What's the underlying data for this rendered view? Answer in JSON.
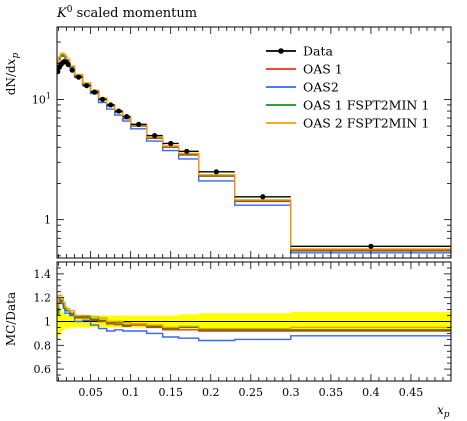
{
  "chart_data": [
    {
      "type": "line",
      "title": "K0 scaled momentum",
      "title_main": "K",
      "title_sup": "0",
      "title_rest": " scaled momentum",
      "ylabel": "dN/dx_p",
      "ylabel_parts": {
        "a": "dN/d",
        "b": "x",
        "c": "p"
      },
      "yscale": "log",
      "ylim": [
        0.48,
        40
      ],
      "y_ticks": [
        {
          "value": 1,
          "label": "1"
        },
        {
          "value": 10,
          "label": "10",
          "base": "10",
          "exp": "1"
        }
      ],
      "x_edges": [
        0.008,
        0.01,
        0.012,
        0.014,
        0.016,
        0.018,
        0.02,
        0.024,
        0.03,
        0.04,
        0.05,
        0.06,
        0.07,
        0.08,
        0.09,
        0.1,
        0.12,
        0.14,
        0.16,
        0.185,
        0.23,
        0.3,
        0.5
      ],
      "data_points": [
        {
          "x": 0.009,
          "y": 17.0,
          "xlo": 0.008,
          "xhi": 0.01
        },
        {
          "x": 0.011,
          "y": 18.5,
          "xlo": 0.01,
          "xhi": 0.012
        },
        {
          "x": 0.013,
          "y": 19.5,
          "xlo": 0.012,
          "xhi": 0.014
        },
        {
          "x": 0.015,
          "y": 20.2,
          "xlo": 0.014,
          "xhi": 0.016
        },
        {
          "x": 0.017,
          "y": 20.6,
          "xlo": 0.016,
          "xhi": 0.018
        },
        {
          "x": 0.019,
          "y": 20.5,
          "xlo": 0.018,
          "xhi": 0.02
        },
        {
          "x": 0.022,
          "y": 19.5,
          "xlo": 0.02,
          "xhi": 0.024
        },
        {
          "x": 0.027,
          "y": 17.5,
          "xlo": 0.024,
          "xhi": 0.03
        },
        {
          "x": 0.035,
          "y": 15.3,
          "xlo": 0.03,
          "xhi": 0.04
        },
        {
          "x": 0.045,
          "y": 13.0,
          "xlo": 0.04,
          "xhi": 0.05
        },
        {
          "x": 0.055,
          "y": 11.5,
          "xlo": 0.05,
          "xhi": 0.06
        },
        {
          "x": 0.065,
          "y": 10.0,
          "xlo": 0.06,
          "xhi": 0.07
        },
        {
          "x": 0.075,
          "y": 9.0,
          "xlo": 0.07,
          "xhi": 0.08
        },
        {
          "x": 0.085,
          "y": 8.0,
          "xlo": 0.08,
          "xhi": 0.09
        },
        {
          "x": 0.095,
          "y": 7.2,
          "xlo": 0.09,
          "xhi": 0.1
        },
        {
          "x": 0.11,
          "y": 6.2,
          "xlo": 0.1,
          "xhi": 0.12
        },
        {
          "x": 0.13,
          "y": 5.0,
          "xlo": 0.12,
          "xhi": 0.14
        },
        {
          "x": 0.15,
          "y": 4.3,
          "xlo": 0.14,
          "xhi": 0.16
        },
        {
          "x": 0.17,
          "y": 3.7,
          "xlo": 0.16,
          "xhi": 0.185
        },
        {
          "x": 0.207,
          "y": 2.5,
          "xlo": 0.185,
          "xhi": 0.23
        },
        {
          "x": 0.265,
          "y": 1.55,
          "xlo": 0.23,
          "xhi": 0.3
        },
        {
          "x": 0.4,
          "y": 0.6,
          "xlo": 0.3,
          "xhi": 0.5
        }
      ],
      "series": [
        {
          "name": "Data",
          "color": "#000000"
        },
        {
          "name": "OAS 1",
          "color": "#ee3311",
          "values": [
            18.0,
            21.5,
            22.8,
            23.5,
            23.2,
            22.5,
            21.2,
            18.6,
            15.8,
            13.4,
            11.6,
            10.0,
            8.8,
            7.8,
            6.9,
            6.0,
            4.75,
            4.0,
            3.45,
            2.3,
            1.42,
            0.55
          ]
        },
        {
          "name": "OAS2",
          "color": "#3366ff",
          "values": [
            18.5,
            22.0,
            23.0,
            23.3,
            22.8,
            22.0,
            20.8,
            18.3,
            15.4,
            13.2,
            11.2,
            9.4,
            8.3,
            7.4,
            6.6,
            5.7,
            4.5,
            3.75,
            3.2,
            2.1,
            1.32,
            0.53
          ]
        },
        {
          "name": "OAS 1 FSPT2MIN 1",
          "color": "#109618",
          "values": [
            18.2,
            21.8,
            23.0,
            23.6,
            23.3,
            22.6,
            21.3,
            18.7,
            15.9,
            13.5,
            11.7,
            10.1,
            8.9,
            7.9,
            7.0,
            6.05,
            4.8,
            4.05,
            3.5,
            2.32,
            1.44,
            0.56
          ]
        },
        {
          "name": "OAS 2 FSPT2MIN 1",
          "color": "#ff9900",
          "values": [
            19.0,
            22.5,
            23.8,
            24.2,
            23.8,
            23.0,
            21.6,
            19.0,
            16.1,
            13.7,
            11.9,
            10.3,
            9.0,
            8.0,
            7.1,
            6.1,
            4.85,
            4.1,
            3.55,
            2.36,
            1.46,
            0.57
          ]
        }
      ],
      "legend": {
        "placement": "top-right"
      },
      "grid": false
    },
    {
      "type": "line",
      "ylabel": "MC/Data",
      "xlabel": "x_p",
      "xlabel_parts": {
        "a": "x",
        "b": "p"
      },
      "ylim": [
        0.5,
        1.5
      ],
      "xlim": [
        0.008,
        0.5
      ],
      "y_ticks": [
        {
          "value": 0.6,
          "label": "0.6"
        },
        {
          "value": 0.8,
          "label": "0.8"
        },
        {
          "value": 1.0,
          "label": "1"
        },
        {
          "value": 1.2,
          "label": "1.2"
        },
        {
          "value": 1.4,
          "label": "1.4"
        }
      ],
      "x_ticks": [
        {
          "value": 0.05,
          "label": "0.05"
        },
        {
          "value": 0.1,
          "label": "0.1"
        },
        {
          "value": 0.15,
          "label": "0.15"
        },
        {
          "value": 0.2,
          "label": "0.2"
        },
        {
          "value": 0.25,
          "label": "0.25"
        },
        {
          "value": 0.3,
          "label": "0.3"
        },
        {
          "value": 0.35,
          "label": "0.35"
        },
        {
          "value": 0.4,
          "label": "0.4"
        },
        {
          "value": 0.45,
          "label": "0.45"
        }
      ],
      "error_band": [
        0.15,
        0.12,
        0.1,
        0.08,
        0.07,
        0.06,
        0.06,
        0.05,
        0.05,
        0.05,
        0.05,
        0.05,
        0.05,
        0.05,
        0.05,
        0.05,
        0.05,
        0.05,
        0.06,
        0.07,
        0.07,
        0.08
      ],
      "series": [
        {
          "name": "OAS 1",
          "color": "#ee3311",
          "values": [
            1.06,
            1.16,
            1.17,
            1.16,
            1.13,
            1.1,
            1.09,
            1.06,
            1.03,
            1.03,
            1.01,
            1.0,
            0.98,
            0.975,
            0.96,
            0.97,
            0.95,
            0.93,
            0.93,
            0.92,
            0.92,
            0.92
          ]
        },
        {
          "name": "OAS2",
          "color": "#3366ff",
          "values": [
            1.09,
            1.19,
            1.18,
            1.15,
            1.11,
            1.07,
            1.07,
            1.05,
            1.0,
            1.01,
            0.97,
            0.94,
            0.92,
            0.93,
            0.92,
            0.92,
            0.9,
            0.87,
            0.86,
            0.84,
            0.85,
            0.88
          ]
        },
        {
          "name": "OAS 1 FSPT2MIN 1",
          "color": "#109618",
          "values": [
            1.07,
            1.18,
            1.18,
            1.17,
            1.13,
            1.1,
            1.09,
            1.07,
            1.04,
            1.04,
            1.02,
            1.01,
            0.99,
            0.99,
            0.97,
            0.98,
            0.96,
            0.94,
            0.95,
            0.93,
            0.93,
            0.93
          ]
        },
        {
          "name": "OAS 2 FSPT2MIN 1",
          "color": "#ff9900",
          "values": [
            1.12,
            1.22,
            1.22,
            1.2,
            1.16,
            1.12,
            1.11,
            1.09,
            1.05,
            1.05,
            1.04,
            1.03,
            1.0,
            1.0,
            0.99,
            0.98,
            0.97,
            0.95,
            0.96,
            0.94,
            0.94,
            0.95
          ]
        }
      ]
    }
  ]
}
